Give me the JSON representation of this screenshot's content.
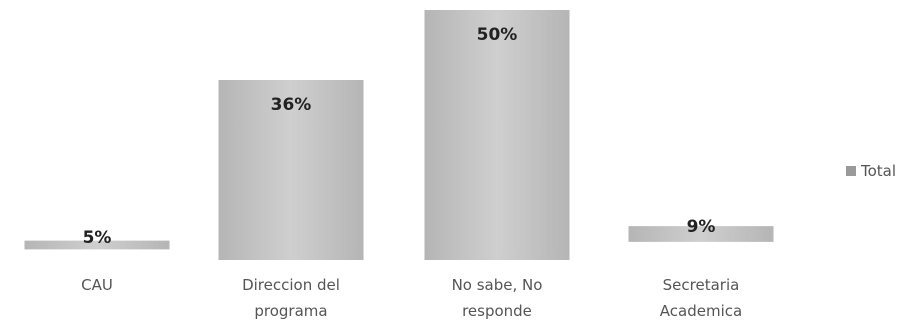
{
  "chart_data": {
    "type": "bar",
    "categories": [
      "CAU",
      "Direccion del programa",
      "No sabe, No responde",
      "Secretaria Academica"
    ],
    "category_lines": [
      [
        "CAU"
      ],
      [
        "Direccion del",
        "programa"
      ],
      [
        "No sabe, No",
        "responde"
      ],
      [
        "Secretaria",
        "Academica"
      ]
    ],
    "series": [
      {
        "name": "Total",
        "values": [
          5,
          36,
          50,
          9
        ]
      }
    ],
    "data_labels": [
      "5%",
      "36%",
      "50%",
      "9%"
    ],
    "ylim": [
      0,
      50
    ],
    "legend": "right",
    "grid": false,
    "colors": {
      "bar": "#c9c9c9",
      "bar_dark": "#a9a9a9",
      "label": "#222222",
      "category_text": "#555555",
      "legend_swatch": "#9a9a9a"
    }
  }
}
